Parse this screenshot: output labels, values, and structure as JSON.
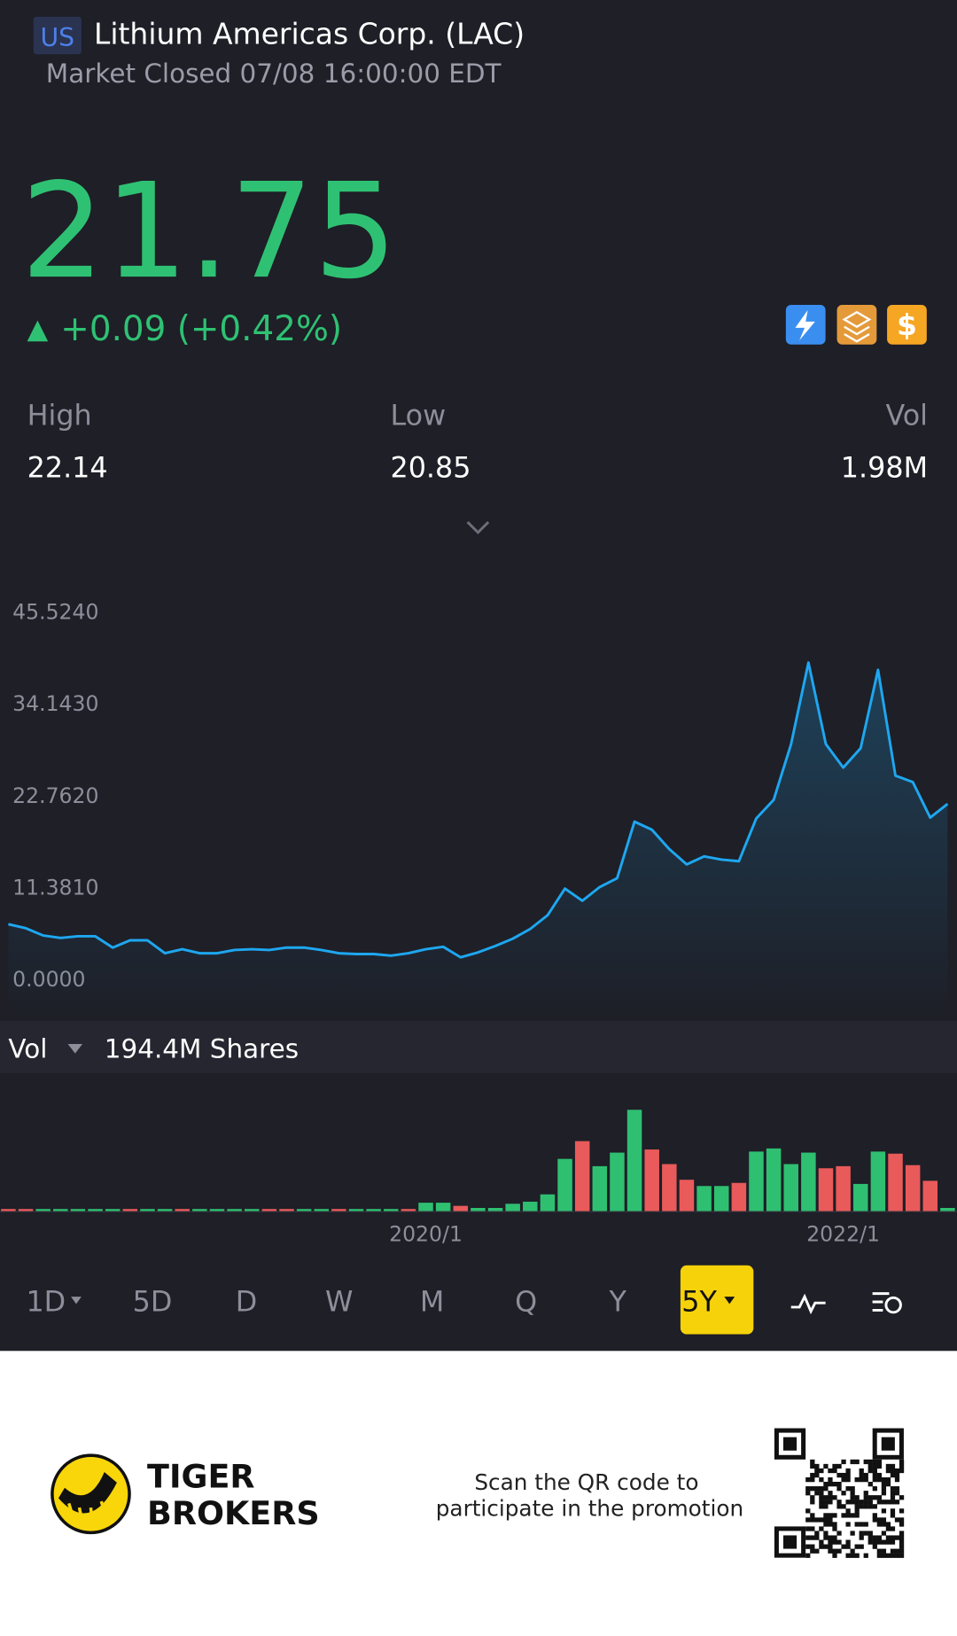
{
  "header": {
    "market": "US",
    "name": "Lithium Americas Corp. (LAC)",
    "status": "Market Closed 07/08 16:00:00 EDT"
  },
  "quote": {
    "price": "21.75",
    "change": "+0.09 (+0.42%)"
  },
  "stats": [
    {
      "label": "High",
      "value": "22.14"
    },
    {
      "label": "Low",
      "value": "20.85"
    },
    {
      "label": "Vol",
      "value": "1.98M"
    }
  ],
  "chart_data": [
    {
      "type": "line",
      "color": "#1ea7f0",
      "values": [
        6.7,
        6.2,
        5.3,
        5.0,
        5.2,
        5.2,
        3.8,
        4.7,
        4.7,
        3.1,
        3.6,
        3.1,
        3.1,
        3.5,
        3.6,
        3.5,
        3.8,
        3.8,
        3.5,
        3.1,
        3.0,
        3.0,
        2.8,
        3.1,
        3.6,
        3.9,
        2.6,
        3.2,
        4.0,
        4.9,
        6.1,
        7.8,
        11.1,
        9.6,
        11.3,
        12.4,
        19.4,
        18.4,
        16.0,
        14.1,
        15.1,
        14.7,
        14.5,
        19.8,
        22.1,
        29.0,
        39.1,
        29.0,
        26.1,
        28.5,
        38.2,
        25.1,
        24.3,
        19.9,
        21.6
      ],
      "ylim": [
        0,
        45.524
      ],
      "yticks": [
        {
          "value": 0,
          "label": "0.0000"
        },
        {
          "value": 11.381,
          "label": "11.3810"
        },
        {
          "value": 22.762,
          "label": "22.7620"
        },
        {
          "value": 34.143,
          "label": "34.1430"
        },
        {
          "value": 45.524,
          "label": "45.5240"
        }
      ]
    },
    {
      "type": "bar",
      "title": "Vol",
      "subtitle": "194.4M Shares",
      "categories": [
        null,
        null,
        null,
        null,
        null,
        null,
        null,
        null,
        null,
        null,
        null,
        null,
        null,
        null,
        null,
        null,
        null,
        null,
        null,
        null,
        null,
        null,
        null,
        null,
        "2020/1",
        null,
        null,
        null,
        null,
        null,
        null,
        null,
        null,
        null,
        null,
        null,
        null,
        null,
        null,
        null,
        null,
        null,
        null,
        null,
        null,
        null,
        null,
        null,
        "2022/1",
        null,
        null,
        null,
        null,
        null,
        null
      ],
      "values": [
        2,
        2,
        2,
        2,
        2,
        2,
        2,
        2,
        2,
        2,
        2,
        2,
        2,
        2,
        2,
        2,
        2,
        2,
        2,
        2,
        2,
        2,
        2,
        2,
        8,
        8,
        5,
        3,
        3,
        7,
        9,
        16,
        50,
        67,
        43,
        56,
        97,
        59,
        45,
        30,
        24,
        24,
        27,
        57,
        60,
        45,
        56,
        41,
        43,
        26,
        57,
        55,
        44,
        29,
        3
      ],
      "colors": [
        "#e95a5a",
        "#e95a5a",
        "#2fbf71",
        "#2fbf71",
        "#2fbf71",
        "#2fbf71",
        "#2fbf71",
        "#e95a5a",
        "#2fbf71",
        "#2fbf71",
        "#e95a5a",
        "#2fbf71",
        "#2fbf71",
        "#2fbf71",
        "#2fbf71",
        "#e95a5a",
        "#e95a5a",
        "#2fbf71",
        "#2fbf71",
        "#e95a5a",
        "#2fbf71",
        "#2fbf71",
        "#2fbf71",
        "#e95a5a",
        "#2fbf71",
        "#2fbf71",
        "#e95a5a",
        "#2fbf71",
        "#2fbf71",
        "#2fbf71",
        "#2fbf71",
        "#2fbf71",
        "#2fbf71",
        "#e95a5a",
        "#2fbf71",
        "#2fbf71",
        "#2fbf71",
        "#e95a5a",
        "#e95a5a",
        "#e95a5a",
        "#2fbf71",
        "#2fbf71",
        "#e95a5a",
        "#2fbf71",
        "#2fbf71",
        "#2fbf71",
        "#2fbf71",
        "#e95a5a",
        "#e95a5a",
        "#2fbf71",
        "#2fbf71",
        "#e95a5a",
        "#e95a5a",
        "#e95a5a",
        "#2fbf71"
      ],
      "ylim": [
        0,
        100
      ]
    }
  ],
  "periods": [
    "1D",
    "5D",
    "D",
    "W",
    "M",
    "Q",
    "Y",
    "5Y"
  ],
  "footer": {
    "brand": [
      "TIGER",
      "BROKERS"
    ],
    "promo": [
      "Scan the QR code to",
      "participate in the promotion"
    ]
  }
}
